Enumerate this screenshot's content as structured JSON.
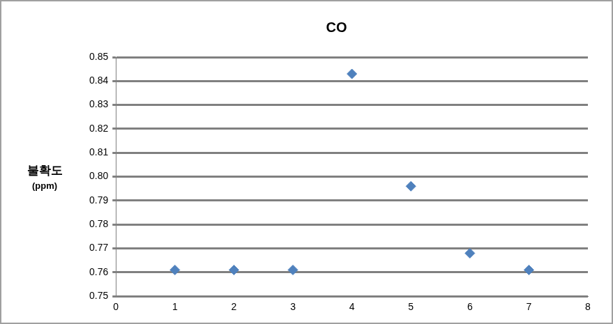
{
  "chart_data": {
    "type": "scatter",
    "title": "CO",
    "ylabel": [
      "불확도",
      "(ppm)"
    ],
    "x": [
      1,
      2,
      3,
      4,
      5,
      6,
      7
    ],
    "values": [
      0.761,
      0.761,
      0.761,
      0.843,
      0.796,
      0.768,
      0.761
    ],
    "color": "#4f81bd",
    "marker": "diamond",
    "xlim": [
      0,
      8
    ],
    "xticks": [
      0,
      1,
      2,
      3,
      4,
      5,
      6,
      7,
      8
    ],
    "ylim": [
      0.75,
      0.85
    ],
    "yticks": [
      0.75,
      0.76,
      0.77,
      0.78,
      0.79,
      {
        "value": 0.8,
        "label": "0.80"
      },
      0.81,
      0.82,
      0.83,
      0.84,
      0.85
    ],
    "grid": "y"
  }
}
